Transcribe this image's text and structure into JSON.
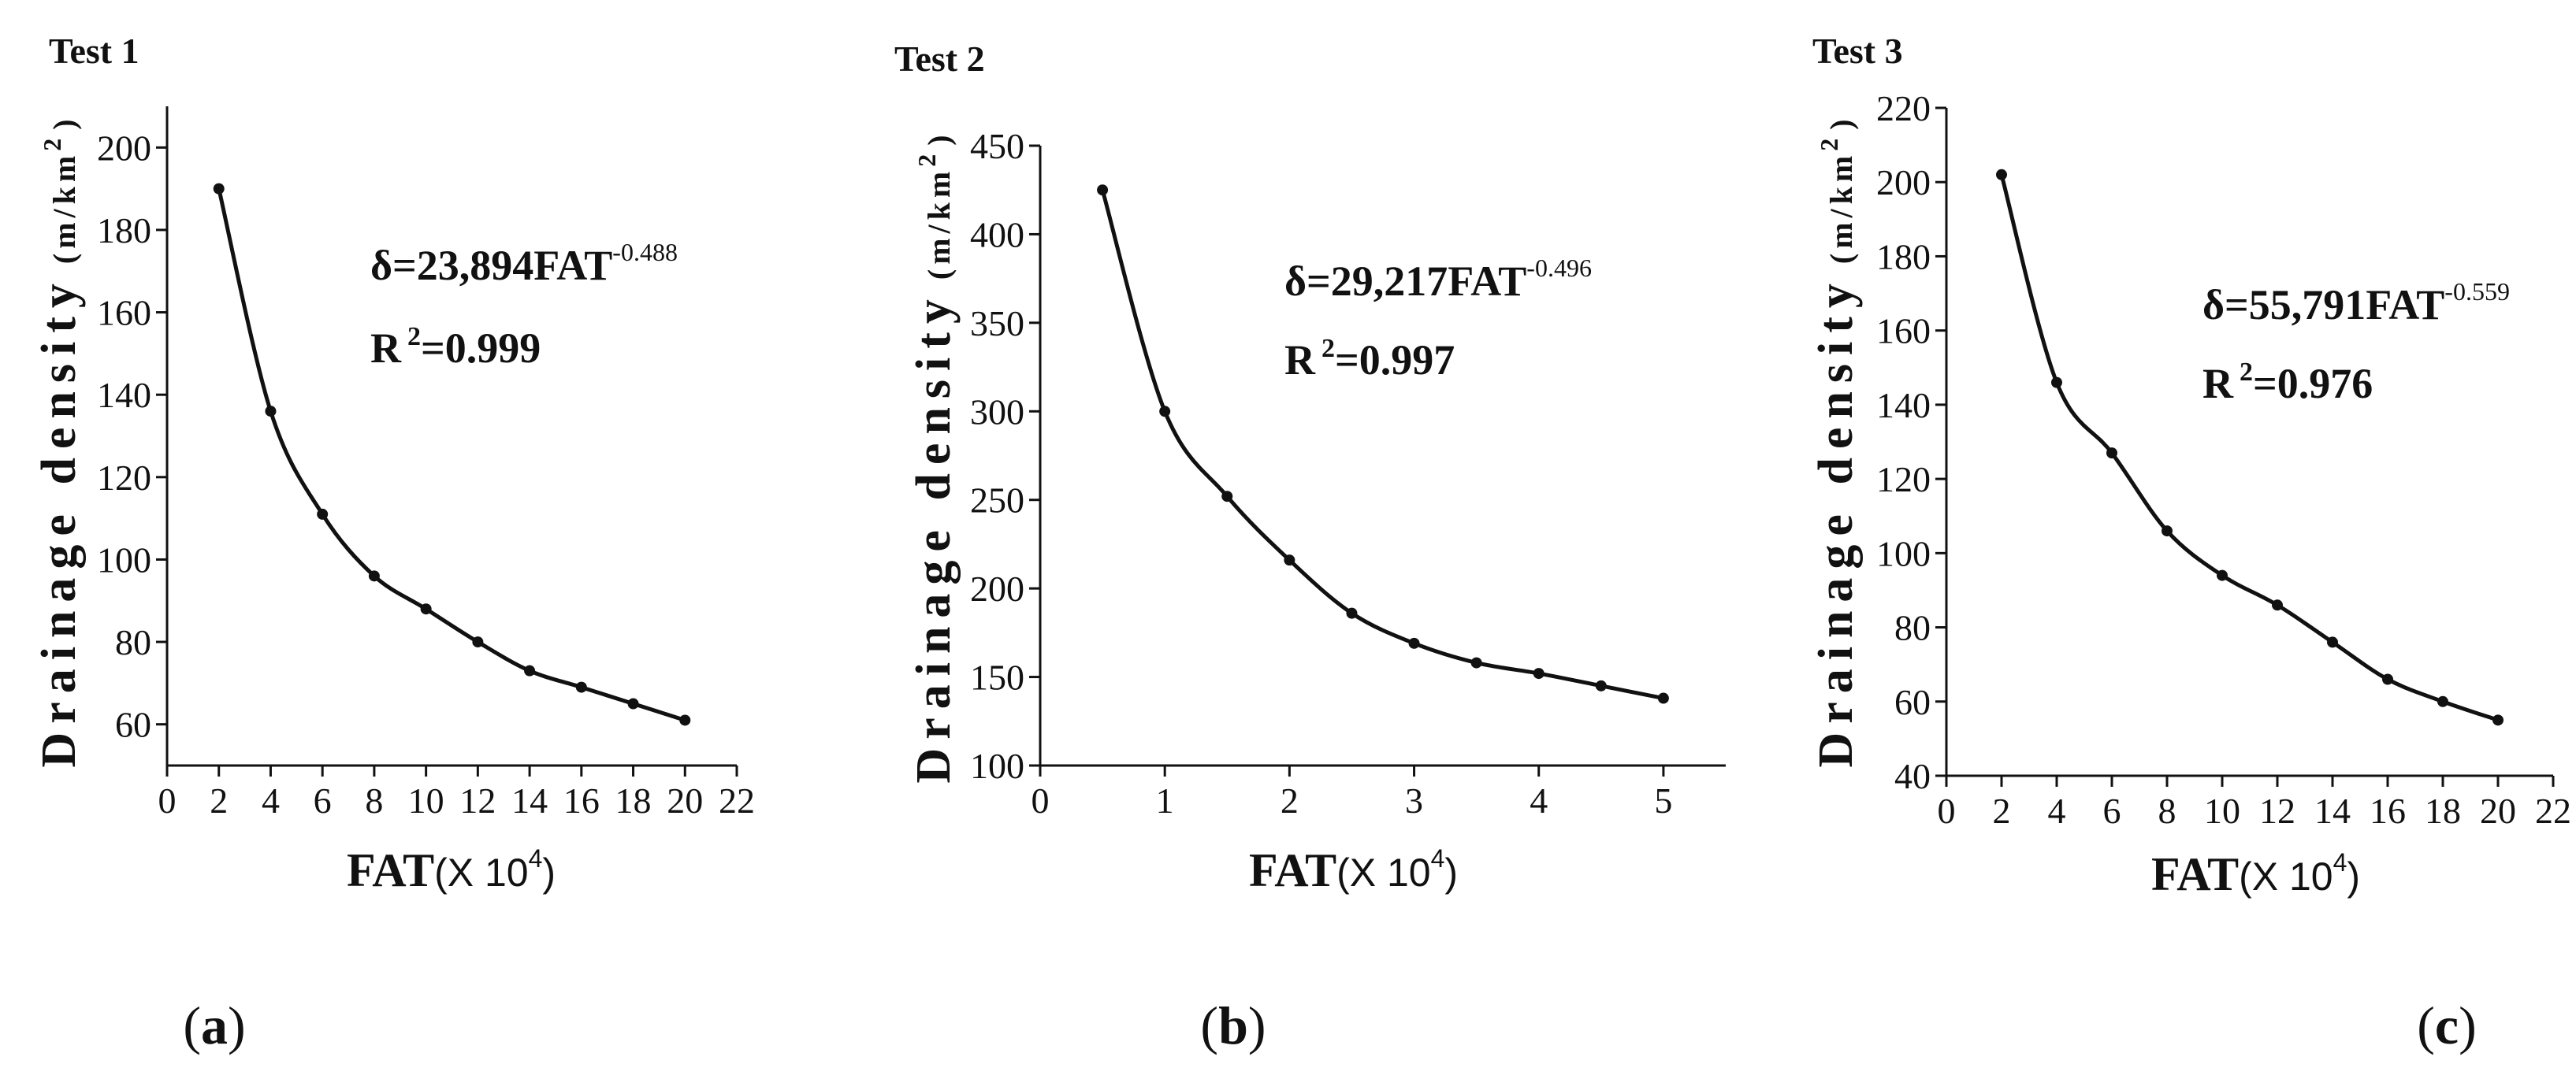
{
  "chart_data": [
    {
      "type": "scatter",
      "panel_label": "a",
      "title": "Test 1",
      "xlabel_bold": "FAT",
      "xlabel_unit": "(X 10",
      "xlabel_exp": "4",
      "xlabel_close": ")",
      "ylabel": "Drainage density",
      "ylabel_unit": "(m/km",
      "ylabel_unit_exp": "2",
      "ylabel_unit_close": ")",
      "xlim": [
        0,
        22
      ],
      "ylim": [
        50,
        210
      ],
      "xticks": [
        0,
        2,
        4,
        6,
        8,
        10,
        12,
        14,
        16,
        18,
        20,
        22
      ],
      "yticks": [
        60,
        80,
        100,
        120,
        140,
        160,
        180,
        200
      ],
      "x": [
        2,
        4,
        6,
        8,
        10,
        12,
        14,
        16,
        18,
        20
      ],
      "y": [
        190,
        136,
        111,
        96,
        88,
        80,
        73,
        69,
        65,
        61
      ],
      "fit": {
        "coef": 23.894,
        "exp": -0.488
      },
      "equation_main": "δ=23,894FAT",
      "equation_exp": "-0.488",
      "r2_label": "R",
      "r2_sup": "2",
      "r2_value": "=0.999",
      "grid": false,
      "color": "#111111"
    },
    {
      "type": "scatter",
      "panel_label": "b",
      "title": "Test 2",
      "xlabel_bold": "FAT",
      "xlabel_unit": "(X 10",
      "xlabel_exp": "4",
      "xlabel_close": ")",
      "ylabel": "Drainage density",
      "ylabel_unit": "(m/km",
      "ylabel_unit_exp": "2",
      "ylabel_unit_close": ")",
      "xlim": [
        0,
        5.5
      ],
      "ylim": [
        100,
        450
      ],
      "xticks": [
        0,
        1,
        2,
        3,
        4,
        5
      ],
      "yticks": [
        100,
        150,
        200,
        250,
        300,
        350,
        400,
        450
      ],
      "x": [
        0.5,
        1,
        1.5,
        2,
        2.5,
        3,
        3.5,
        4,
        4.5,
        5
      ],
      "y": [
        425,
        300,
        252,
        216,
        186,
        169,
        158,
        152,
        145,
        138
      ],
      "fit": {
        "coef": 29.217,
        "exp": -0.496
      },
      "equation_main": "δ=29,217FAT",
      "equation_exp": "-0.496",
      "r2_label": "R",
      "r2_sup": "2",
      "r2_value": "=0.997",
      "grid": false,
      "color": "#111111"
    },
    {
      "type": "scatter",
      "panel_label": "c",
      "title": "Test 3",
      "xlabel_bold": "FAT",
      "xlabel_unit": "(X 10",
      "xlabel_exp": "4",
      "xlabel_close": ")",
      "ylabel": "Drainage density",
      "ylabel_unit": "(m/km",
      "ylabel_unit_exp": "2",
      "ylabel_unit_close": ")",
      "xlim": [
        0,
        22
      ],
      "ylim": [
        40,
        220
      ],
      "xticks": [
        0,
        2,
        4,
        6,
        8,
        10,
        12,
        14,
        16,
        18,
        20,
        22
      ],
      "yticks": [
        40,
        60,
        80,
        100,
        120,
        140,
        160,
        180,
        200,
        220
      ],
      "x": [
        2,
        4,
        6,
        8,
        10,
        12,
        14,
        16,
        18,
        20
      ],
      "y": [
        202,
        146,
        127,
        106,
        94,
        86,
        76,
        66,
        60,
        55
      ],
      "fit": {
        "coef": 55.791,
        "exp": -0.559
      },
      "equation_main": "δ=55,791FAT",
      "equation_exp": "-0.559",
      "r2_label": "R",
      "r2_sup": "2",
      "r2_value": "=0.976",
      "grid": false,
      "color": "#111111"
    }
  ]
}
